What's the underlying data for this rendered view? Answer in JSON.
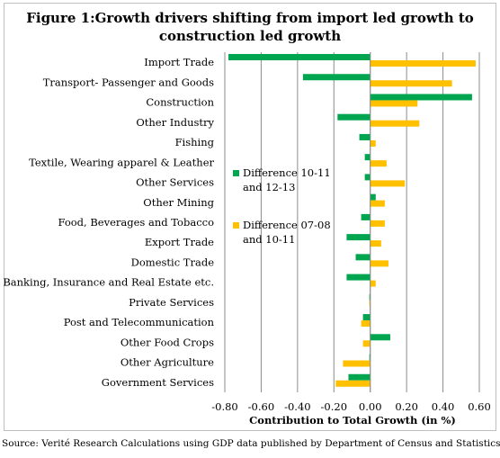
{
  "chart_data": {
    "type": "bar",
    "orientation": "horizontal",
    "title": "Figure 1:Growth drivers shifting from import led growth to construction led growth",
    "xlabel": "Contribution to Total Growth (in %)",
    "ylabel": "",
    "xlim": [
      -0.8,
      0.6
    ],
    "xticks": [
      "-0.80",
      "-0.60",
      "-0.40",
      "-0.20",
      "0.00",
      "0.20",
      "0.40",
      "0.60"
    ],
    "grid": true,
    "legend_position": "left-center",
    "categories": [
      "Import Trade",
      "Transport- Passenger and Goods",
      "Construction",
      "Other Industry",
      "Fishing",
      "Textile, Wearing  apparel & Leather",
      "Other Services",
      "Other Mining",
      "Food, Beverages and Tobacco",
      "Export Trade",
      "Domestic Trade",
      "Banking, Insurance and Real Estate etc.",
      "Private Services",
      "Post and Telecommunication",
      "Other Food Crops",
      "Other Agriculture",
      "Government Services"
    ],
    "series": [
      {
        "name": "Difference 10-11 and 12-13",
        "legend_lines": [
          "Difference 10-11",
          "and 12-13"
        ],
        "color": "#00a550",
        "values": [
          -0.78,
          -0.37,
          0.56,
          -0.18,
          -0.06,
          -0.03,
          -0.03,
          0.03,
          -0.05,
          -0.13,
          -0.08,
          -0.13,
          -0.005,
          -0.04,
          0.11,
          -0.005,
          -0.12
        ]
      },
      {
        "name": "Difference 07-08 and 10-11",
        "legend_lines": [
          "Difference 07-08",
          "and 10-11"
        ],
        "color": "#ffc000",
        "values": [
          0.58,
          0.45,
          0.26,
          0.27,
          0.03,
          0.09,
          0.19,
          0.08,
          0.08,
          0.06,
          0.1,
          0.03,
          -0.005,
          -0.05,
          -0.04,
          -0.15,
          -0.19
        ]
      }
    ]
  },
  "source": "Source: Verité Research Calculations using GDP data published by Department of Census and Statistics"
}
